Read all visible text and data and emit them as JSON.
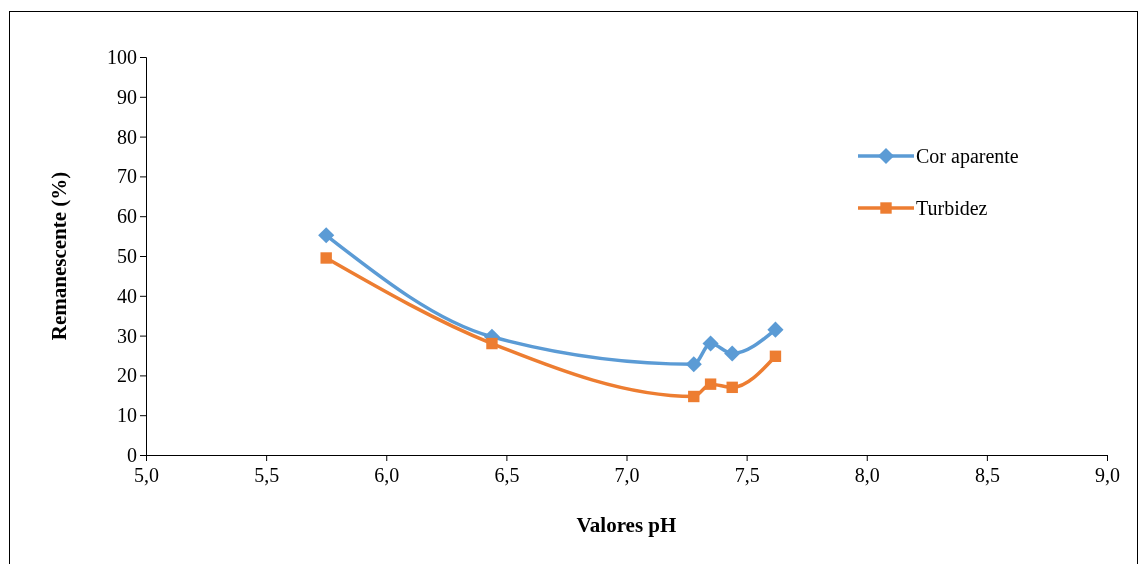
{
  "chart_data": {
    "type": "line",
    "xlabel": "Valores pH",
    "ylabel": "Remanescente (%)",
    "xlim": [
      5,
      9
    ],
    "xticks": [
      {
        "value": 5,
        "label": "5,0"
      },
      {
        "value": 5.5,
        "label": "5,5"
      },
      {
        "value": 6,
        "label": "6,0"
      },
      {
        "value": 6.5,
        "label": "6,5"
      },
      {
        "value": 7,
        "label": "7,0"
      },
      {
        "value": 7.5,
        "label": "7,5"
      },
      {
        "value": 8,
        "label": "8,0"
      },
      {
        "value": 8.5,
        "label": "8,5"
      },
      {
        "value": 9,
        "label": "9,0"
      }
    ],
    "ylim": [
      0,
      100
    ],
    "yticks": [
      0,
      10,
      20,
      30,
      40,
      50,
      60,
      70,
      80,
      90,
      100
    ],
    "x": [
      5.75,
      6.44,
      7.28,
      7.35,
      7.44,
      7.62
    ],
    "series": [
      {
        "name": "Cor aparente",
        "color": "#5b9bd5",
        "marker": "diamond",
        "values": [
          55.2,
          29.7,
          22.8,
          28,
          25.5,
          31.5
        ]
      },
      {
        "name": "Turbidez",
        "color": "#ed7d31",
        "marker": "square",
        "values": [
          49.5,
          28,
          14.7,
          17.8,
          17,
          24.8
        ]
      }
    ],
    "grid": false,
    "legend": "right"
  }
}
